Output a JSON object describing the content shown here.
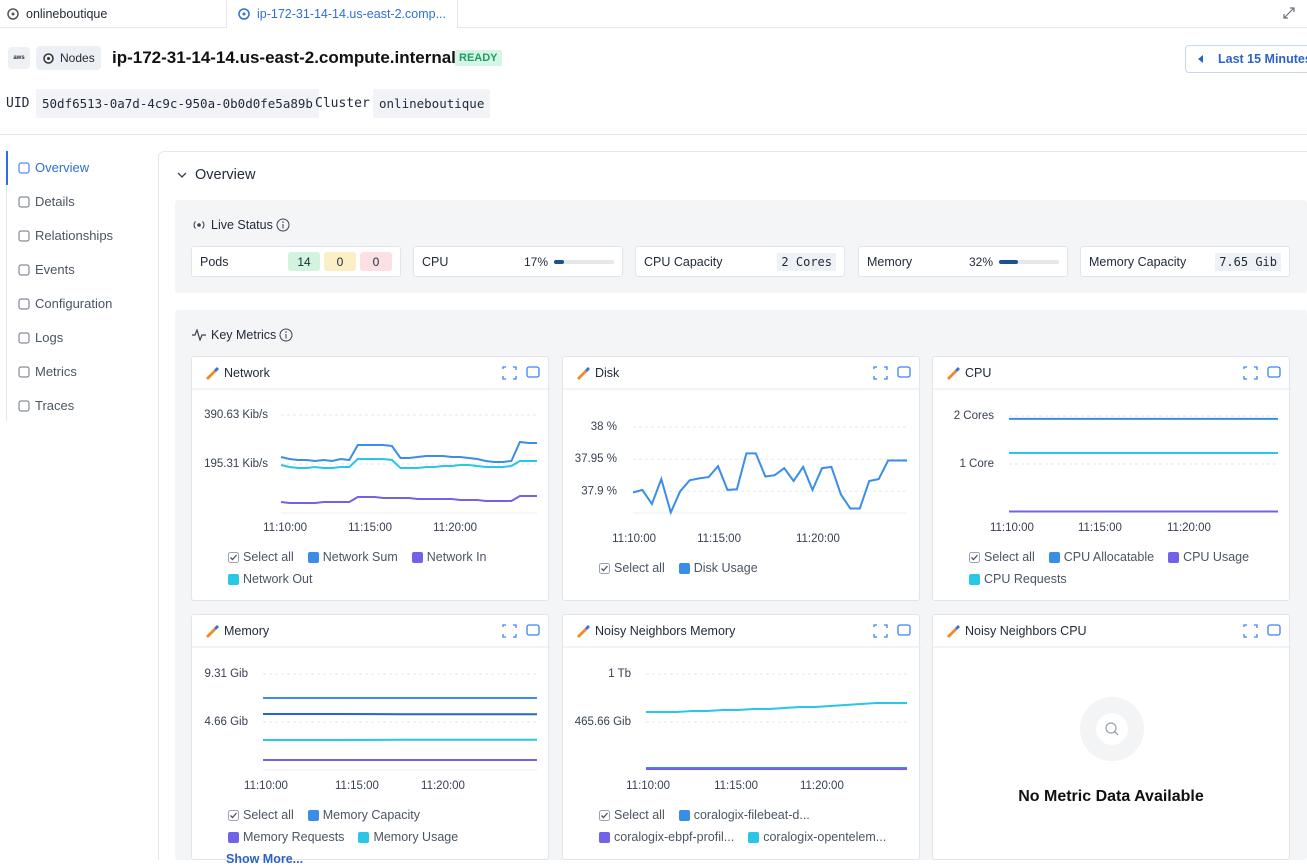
{
  "tabs": [
    {
      "label": "onlineboutique"
    },
    {
      "label": "ip-172-31-14-14.us-east-2.comp..."
    }
  ],
  "header": {
    "provider": "aws",
    "kind": "Nodes",
    "title": "ip-172-31-14-14.us-east-2.compute.internal",
    "status": "READY",
    "time_range": "Last 15 Minutes",
    "uid_label": "UID",
    "uid": "50df6513-0a7d-4c9c-950a-0b0d0fe5a89b",
    "cluster_label": "Cluster",
    "cluster": "onlineboutique"
  },
  "nav": [
    "Overview",
    "Details",
    "Relationships",
    "Events",
    "Configuration",
    "Logs",
    "Metrics",
    "Traces"
  ],
  "overview": {
    "title": "Overview",
    "live_status": {
      "title": "Live Status",
      "pods": {
        "label": "Pods",
        "counts": [
          14,
          0,
          0
        ]
      },
      "cpu": {
        "label": "CPU",
        "percent": 17,
        "percent_label": "17%"
      },
      "cpu_capacity": {
        "label": "CPU Capacity",
        "value": "2 Cores"
      },
      "memory": {
        "label": "Memory",
        "percent": 32,
        "percent_label": "32%"
      },
      "memory_capacity": {
        "label": "Memory Capacity",
        "value": "7.65 Gib"
      }
    }
  },
  "key_metrics": {
    "title": "Key Metrics",
    "select_all": "Select all",
    "show_more": "Show More...",
    "charts": [
      {
        "type": "line",
        "title": "Network",
        "ylim": [
          0,
          390.63
        ],
        "yticks": [
          {
            "value": 390.63,
            "label": "390.63 Kib/s"
          },
          {
            "value": 195.31,
            "label": "195.31 Kib/s"
          }
        ],
        "xticks": [
          "11:10:00",
          "11:15:00",
          "11:20:00"
        ],
        "series": [
          {
            "name": "Network Sum",
            "color": "#3b8ee8",
            "values": [
              223.2,
              215.2,
              211.3,
              211.3,
              207.3,
              211.3,
              207.3,
              215.2,
              211.3,
              271.0,
              271.0,
              271.0,
              271.0,
              267.1,
              219.2,
              219.2,
              223.2,
              227.2,
              227.2,
              227.2,
              223.2,
              223.2,
              219.2,
              215.2,
              207.3,
              203.3,
              203.3,
              207.3,
              283.0,
              279.0,
              279.0
            ]
          },
          {
            "name": "Network In",
            "color": "#7063e8",
            "values": [
              43.8,
              39.9,
              39.9,
              39.9,
              39.9,
              43.8,
              43.8,
              43.8,
              43.8,
              63.8,
              63.8,
              63.8,
              59.8,
              59.8,
              59.8,
              59.8,
              55.8,
              55.8,
              55.8,
              55.8,
              55.8,
              51.8,
              51.8,
              51.8,
              47.8,
              47.8,
              47.8,
              47.8,
              67.8,
              67.8,
              67.8
            ]
          },
          {
            "name": "Network Out",
            "color": "#2ac6e6",
            "values": [
              191.3,
              183.4,
              179.4,
              179.4,
              183.4,
              179.4,
              179.4,
              183.4,
              183.4,
              215.2,
              215.2,
              215.2,
              215.2,
              211.3,
              179.4,
              179.4,
              179.4,
              183.4,
              183.4,
              187.3,
              187.3,
              191.3,
              191.3,
              187.3,
              183.4,
              183.4,
              183.4,
              187.3,
              207.3,
              207.3,
              207.3
            ]
          }
        ]
      },
      {
        "type": "line",
        "title": "Disk",
        "ylim": [
          37.866,
          38.019
        ],
        "yticks": [
          {
            "value": 38,
            "label": "38 %"
          },
          {
            "value": 37.95,
            "label": "37.95 %"
          },
          {
            "value": 37.9,
            "label": "37.9 %"
          }
        ],
        "xticks": [
          "11:10:00",
          "11:15:00",
          "11:20:00"
        ],
        "series": [
          {
            "name": "Disk Usage",
            "color": "#3b8ee8",
            "values": [
              37.898,
              37.902,
              37.88,
              37.919,
              37.867,
              37.9,
              37.917,
              37.92,
              37.922,
              37.939,
              37.902,
              37.903,
              37.959,
              37.959,
              37.923,
              37.925,
              37.936,
              37.916,
              37.938,
              37.902,
              37.936,
              37.938,
              37.895,
              37.873,
              37.873,
              37.916,
              37.919,
              37.948,
              37.948,
              37.948
            ]
          }
        ]
      },
      {
        "type": "line",
        "title": "CPU",
        "ylim": [
          0,
          2
        ],
        "yticks": [
          {
            "value": 2,
            "label": "2 Cores"
          },
          {
            "value": 1,
            "label": "1 Core"
          }
        ],
        "xticks": [
          "11:10:00",
          "11:15:00",
          "11:20:00"
        ],
        "series": [
          {
            "name": "CPU Allocatable",
            "color": "#3b8ee8",
            "values": [
              1.94,
              1.94,
              1.94,
              1.94,
              1.94
            ]
          },
          {
            "name": "CPU Usage",
            "color": "#7063e8",
            "values": [
              0.01,
              0.01,
              0.01,
              0.01,
              0.01
            ]
          },
          {
            "name": "CPU Requests",
            "color": "#2ac6e6",
            "values": [
              1.23,
              1.23,
              1.23,
              1.23,
              1.23
            ]
          }
        ]
      },
      {
        "type": "line",
        "title": "Memory",
        "ylim": [
          0,
          9.31
        ],
        "yticks": [
          {
            "value": 9.31,
            "label": "9.31 Gib"
          },
          {
            "value": 4.66,
            "label": "4.66 Gib"
          }
        ],
        "xticks": [
          "11:10:00",
          "11:15:00",
          "11:20:00"
        ],
        "series": [
          {
            "name": "Memory Capacity",
            "color": "#3b8ee8",
            "values": [
              6.98,
              6.98,
              6.98,
              6.98,
              6.98
            ]
          },
          {
            "name": "Memory Requests",
            "color": "#7063e8",
            "values": [
              0.97,
              0.97,
              0.97,
              0.97,
              0.97
            ]
          },
          {
            "name": "Memory Usage",
            "color": "#2ac6e6",
            "values": [
              2.91,
              2.91,
              2.93,
              2.93,
              2.93
            ]
          },
          {
            "color": "#2563d8",
            "values": [
              5.43,
              5.43,
              5.41,
              5.41,
              5.41
            ]
          }
        ]
      },
      {
        "type": "line",
        "title": "Noisy Neighbors Memory",
        "ylim": [
          0,
          931.32
        ],
        "yticks": [
          {
            "value": 931.32,
            "label": "1 Tb"
          },
          {
            "value": 465.66,
            "label": "465.66 Gib"
          }
        ],
        "xticks": [
          "11:10:00",
          "11:15:00",
          "11:20:00"
        ],
        "series": [
          {
            "name": "coralogix-filebeat-d...",
            "color": "#3b8ee8",
            "values": [
              19.4,
              19.4,
              19.4,
              19.4,
              19.4,
              19.4,
              19.4,
              19.4,
              19.4,
              19.4
            ]
          },
          {
            "name": "coralogix-ebpf-profil...",
            "color": "#7063e8",
            "values": [
              9.7,
              9.7,
              9.7,
              9.7,
              9.7,
              9.7,
              9.7,
              9.7,
              9.7,
              9.7
            ]
          },
          {
            "name": "coralogix-opentelem...",
            "color": "#2ac6e6",
            "values": [
              562.7,
              562.7,
              562.7,
              572.4,
              572.4,
              582.1,
              582.1,
              591.8,
              591.8,
              601.5,
              611.2,
              611.2,
              620.9,
              630.6,
              640.3,
              650.0,
              650.0,
              650.0
            ]
          }
        ]
      },
      {
        "type": "empty",
        "title": "Noisy Neighbors CPU",
        "message": "No Metric Data Available"
      }
    ]
  }
}
